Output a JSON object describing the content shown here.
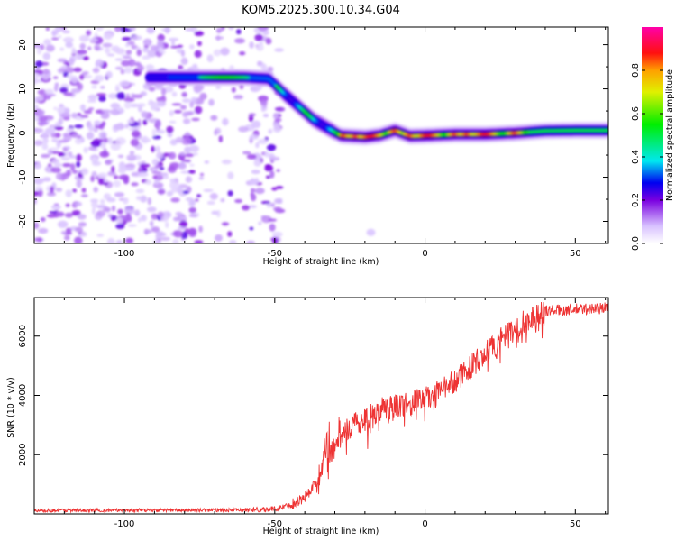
{
  "title": "KOM5.2025.300.10.34.G04",
  "colors": {
    "snr_line": "#ee3333",
    "frame": "#000000",
    "background": "#ffffff"
  },
  "chart_data": [
    {
      "type": "heatmap",
      "name": "spectrogram",
      "xlabel": "Height of straight line (km)",
      "ylabel": "Frequency (Hz)",
      "xlim": [
        -130,
        61
      ],
      "ylim": [
        -25,
        24
      ],
      "xticks": [
        -100,
        -50,
        0,
        50
      ],
      "xtick_labels": [
        "-100",
        "-50",
        "0",
        "50"
      ],
      "yticks": [
        -20,
        -10,
        0,
        10,
        20
      ],
      "ytick_labels": [
        "-20",
        "-10",
        "0",
        "10",
        "20"
      ],
      "ridge": {
        "x": [
          -90,
          -75,
          -60,
          -52,
          -47,
          -42,
          -37,
          -32,
          -28,
          -20,
          -15,
          -10,
          -5,
          0,
          10,
          20,
          30,
          40,
          50,
          61
        ],
        "y": [
          12.6,
          12.6,
          12.6,
          12.3,
          9,
          6,
          3,
          1,
          -0.6,
          -0.9,
          -0.5,
          0.6,
          -0.7,
          -0.6,
          -0.3,
          -0.3,
          0,
          0.5,
          0.6,
          0.6
        ]
      },
      "noise_xlim": [
        -130,
        -48
      ],
      "colorbar": {
        "label": "Normalized spectral amplitude",
        "range": [
          0,
          1
        ],
        "ticks": [
          0,
          0.2,
          0.4,
          0.6,
          0.8
        ],
        "tick_labels": [
          "0.0",
          "0.2",
          "0.4",
          "0.6",
          "0.8"
        ],
        "stops": [
          {
            "v": 0.0,
            "c": "#ffffff"
          },
          {
            "v": 0.08,
            "c": "#d8c2ff"
          },
          {
            "v": 0.2,
            "c": "#7a00e0"
          },
          {
            "v": 0.28,
            "c": "#0000f0"
          },
          {
            "v": 0.38,
            "c": "#00e8f0"
          },
          {
            "v": 0.55,
            "c": "#00ee00"
          },
          {
            "v": 0.7,
            "c": "#e0f000"
          },
          {
            "v": 0.8,
            "c": "#ffa000"
          },
          {
            "v": 0.88,
            "c": "#ff1010"
          },
          {
            "v": 1.0,
            "c": "#ff00aa"
          }
        ]
      }
    },
    {
      "type": "line",
      "name": "snr",
      "xlabel": "Height of straight line (km)",
      "ylabel": "SNR (10 * v/v)",
      "xlim": [
        -130,
        61
      ],
      "ylim": [
        0,
        7300
      ],
      "xticks": [
        -100,
        -50,
        0,
        50
      ],
      "xtick_labels": [
        "-100",
        "-50",
        "0",
        "50"
      ],
      "yticks": [
        2000,
        4000,
        6000
      ],
      "ytick_labels": [
        "2000",
        "4000",
        "6000"
      ],
      "trend": {
        "x": [
          -130,
          -60,
          -50,
          -45,
          -40,
          -36,
          -33,
          -30,
          -28,
          -25,
          -20,
          -15,
          -10,
          -5,
          0,
          5,
          10,
          15,
          20,
          25,
          30,
          35,
          40,
          50,
          61
        ],
        "y": [
          120,
          130,
          170,
          300,
          550,
          1100,
          2000,
          2200,
          2700,
          2900,
          3200,
          3500,
          3650,
          3750,
          3900,
          4100,
          4500,
          4950,
          5400,
          5850,
          6250,
          6600,
          6850,
          6900,
          6950
        ]
      }
    }
  ]
}
